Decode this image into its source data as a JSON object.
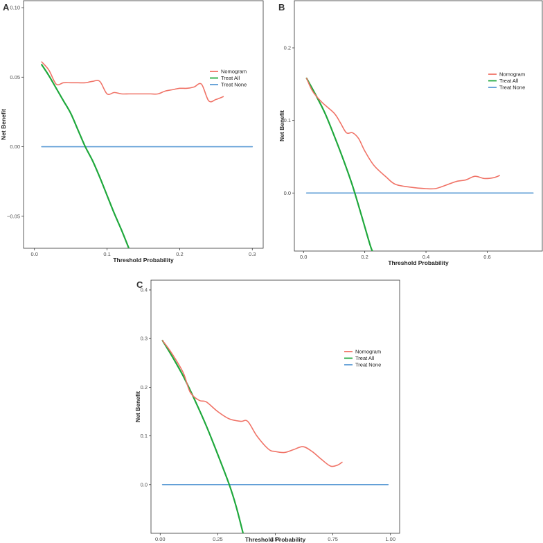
{
  "chart_data": [
    {
      "panel": "A",
      "type": "line",
      "title": "",
      "xlabel": "Threshold Probability",
      "ylabel": "Net Benefit",
      "xlim": [
        -0.015,
        0.315
      ],
      "ylim": [
        -0.073,
        0.105
      ],
      "xticks": [
        0.0,
        0.1,
        0.2,
        0.3
      ],
      "xtick_labels": [
        "0.0",
        "0.1",
        "0.2",
        "0.3"
      ],
      "yticks": [
        -0.05,
        0.0,
        0.05,
        0.1
      ],
      "ytick_labels": [
        "−0.05",
        "0.00",
        "0.05",
        "0.10"
      ],
      "legend": [
        "Nomogram",
        "Treat All",
        "Treat None"
      ],
      "legend_position": "right",
      "grid": false,
      "series": [
        {
          "name": "Nomogram",
          "color": "#f07367",
          "x": [
            0.01,
            0.02,
            0.03,
            0.04,
            0.05,
            0.06,
            0.07,
            0.08,
            0.09,
            0.1,
            0.11,
            0.12,
            0.13,
            0.14,
            0.15,
            0.16,
            0.17,
            0.18,
            0.19,
            0.2,
            0.21,
            0.22,
            0.23,
            0.24,
            0.25,
            0.26
          ],
          "y": [
            0.061,
            0.055,
            0.045,
            0.046,
            0.046,
            0.046,
            0.046,
            0.047,
            0.047,
            0.038,
            0.039,
            0.038,
            0.038,
            0.038,
            0.038,
            0.038,
            0.038,
            0.04,
            0.041,
            0.042,
            0.042,
            0.043,
            0.045,
            0.033,
            0.034,
            0.036
          ]
        },
        {
          "name": "Treat All",
          "color": "#1fa83c",
          "x": [
            0.01,
            0.02,
            0.03,
            0.04,
            0.05,
            0.06,
            0.07,
            0.08,
            0.09,
            0.1,
            0.11,
            0.12,
            0.13
          ],
          "y": [
            0.059,
            0.051,
            0.042,
            0.033,
            0.024,
            0.012,
            0.0,
            -0.01,
            -0.022,
            -0.035,
            -0.048,
            -0.06,
            -0.073
          ]
        },
        {
          "name": "Treat None",
          "color": "#5b9bd5",
          "x": [
            0.01,
            0.3
          ],
          "y": [
            0.0,
            0.0
          ]
        }
      ]
    },
    {
      "panel": "B",
      "type": "line",
      "title": "",
      "xlabel": "Threshold Probability",
      "ylabel": "Net Benefit",
      "xlim": [
        -0.03,
        0.78
      ],
      "ylim": [
        -0.08,
        0.265
      ],
      "xticks": [
        0.0,
        0.2,
        0.4,
        0.6
      ],
      "xtick_labels": [
        "0.0",
        "0.2",
        "0.4",
        "0.6"
      ],
      "yticks": [
        0.0,
        0.1,
        0.2
      ],
      "ytick_labels": [
        "0.0",
        "0.1",
        "0.2"
      ],
      "legend": [
        "Nomogram",
        "Treat All",
        "Treat None"
      ],
      "legend_position": "right",
      "grid": false,
      "series": [
        {
          "name": "Nomogram",
          "color": "#f07367",
          "x": [
            0.01,
            0.03,
            0.06,
            0.1,
            0.12,
            0.14,
            0.16,
            0.18,
            0.2,
            0.23,
            0.27,
            0.3,
            0.35,
            0.4,
            0.43,
            0.46,
            0.5,
            0.53,
            0.56,
            0.59,
            0.62,
            0.64
          ],
          "y": [
            0.158,
            0.14,
            0.125,
            0.11,
            0.097,
            0.083,
            0.083,
            0.075,
            0.058,
            0.038,
            0.022,
            0.012,
            0.008,
            0.006,
            0.006,
            0.01,
            0.016,
            0.018,
            0.023,
            0.02,
            0.021,
            0.024
          ]
        },
        {
          "name": "Treat All",
          "color": "#1fa83c",
          "x": [
            0.01,
            0.04,
            0.07,
            0.1,
            0.13,
            0.16,
            0.19,
            0.22,
            0.23
          ],
          "y": [
            0.158,
            0.135,
            0.11,
            0.079,
            0.046,
            0.01,
            -0.032,
            -0.075,
            -0.082
          ]
        },
        {
          "name": "Treat None",
          "color": "#5b9bd5",
          "x": [
            0.01,
            0.75
          ],
          "y": [
            0.0,
            0.0
          ]
        }
      ]
    },
    {
      "panel": "C",
      "type": "line",
      "title": "",
      "xlabel": "Threshold Probability",
      "ylabel": "Net Benefit",
      "xlim": [
        -0.04,
        1.04
      ],
      "ylim": [
        -0.1,
        0.42
      ],
      "xticks": [
        0.0,
        0.25,
        0.5,
        0.75,
        1.0
      ],
      "xtick_labels": [
        "0.00",
        "0.25",
        "0.50",
        "0.75",
        "1.00"
      ],
      "yticks": [
        0.0,
        0.1,
        0.2,
        0.3,
        0.4
      ],
      "ytick_labels": [
        "0.0",
        "0.1",
        "0.2",
        "0.3",
        "0.4"
      ],
      "legend": [
        "Nomogram",
        "Treat All",
        "Treat None"
      ],
      "legend_position": "right",
      "grid": false,
      "series": [
        {
          "name": "Nomogram",
          "color": "#f07367",
          "x": [
            0.01,
            0.05,
            0.1,
            0.13,
            0.17,
            0.2,
            0.25,
            0.3,
            0.35,
            0.38,
            0.42,
            0.47,
            0.5,
            0.54,
            0.58,
            0.62,
            0.66,
            0.7,
            0.74,
            0.77,
            0.79
          ],
          "y": [
            0.296,
            0.27,
            0.23,
            0.19,
            0.173,
            0.17,
            0.15,
            0.135,
            0.13,
            0.13,
            0.1,
            0.073,
            0.068,
            0.066,
            0.072,
            0.078,
            0.068,
            0.052,
            0.038,
            0.04,
            0.046
          ]
        },
        {
          "name": "Treat All",
          "color": "#1fa83c",
          "x": [
            0.01,
            0.05,
            0.1,
            0.15,
            0.2,
            0.25,
            0.3,
            0.33,
            0.36
          ],
          "y": [
            0.296,
            0.265,
            0.223,
            0.174,
            0.121,
            0.062,
            0.0,
            -0.045,
            -0.1
          ]
        },
        {
          "name": "Treat None",
          "color": "#5b9bd5",
          "x": [
            0.01,
            0.99
          ],
          "y": [
            0.0,
            0.0
          ]
        }
      ]
    }
  ]
}
